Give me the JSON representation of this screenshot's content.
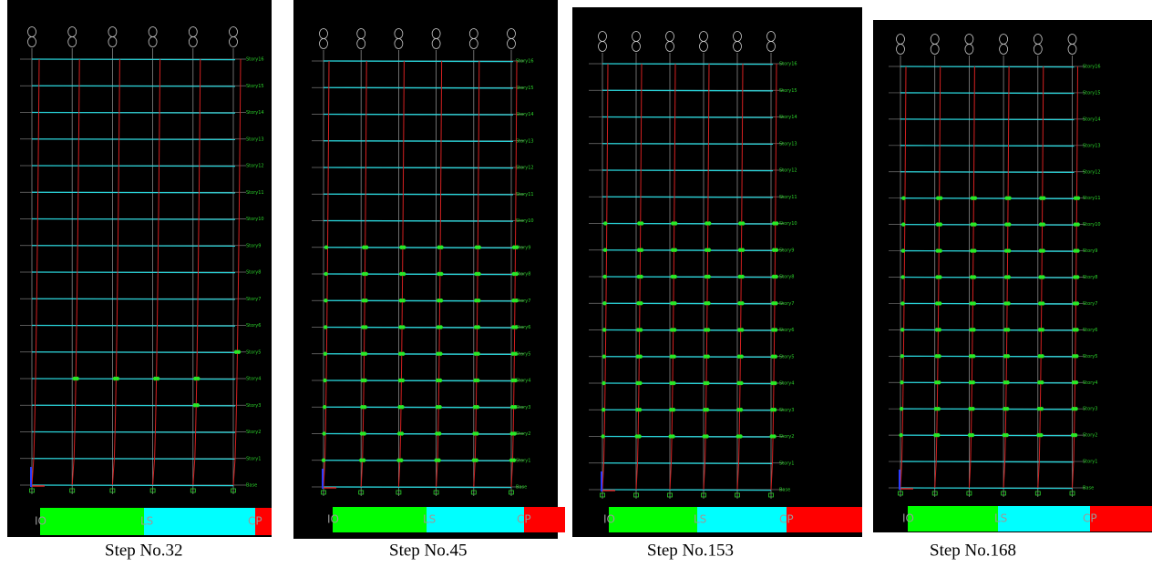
{
  "panels": [
    {
      "caption": "Step No.32",
      "legend": [
        "IO",
        "LS",
        "CP"
      ]
    },
    {
      "caption": "Step No.45",
      "legend": [
        "IO",
        "LS",
        "CP"
      ]
    },
    {
      "caption": "Step No.153",
      "legend": [
        "IO",
        "LS",
        "CP"
      ]
    },
    {
      "caption": "Step No.168",
      "legend": [
        "IO",
        "LS",
        "CP"
      ]
    }
  ],
  "story_labels": [
    "Story16",
    "Story15",
    "Story14",
    "Story13",
    "Story12",
    "Story11",
    "Story10",
    "Story9",
    "Story8",
    "Story7",
    "Story6",
    "Story5",
    "Story4",
    "Story3",
    "Story2",
    "Story1",
    "Base"
  ]
}
